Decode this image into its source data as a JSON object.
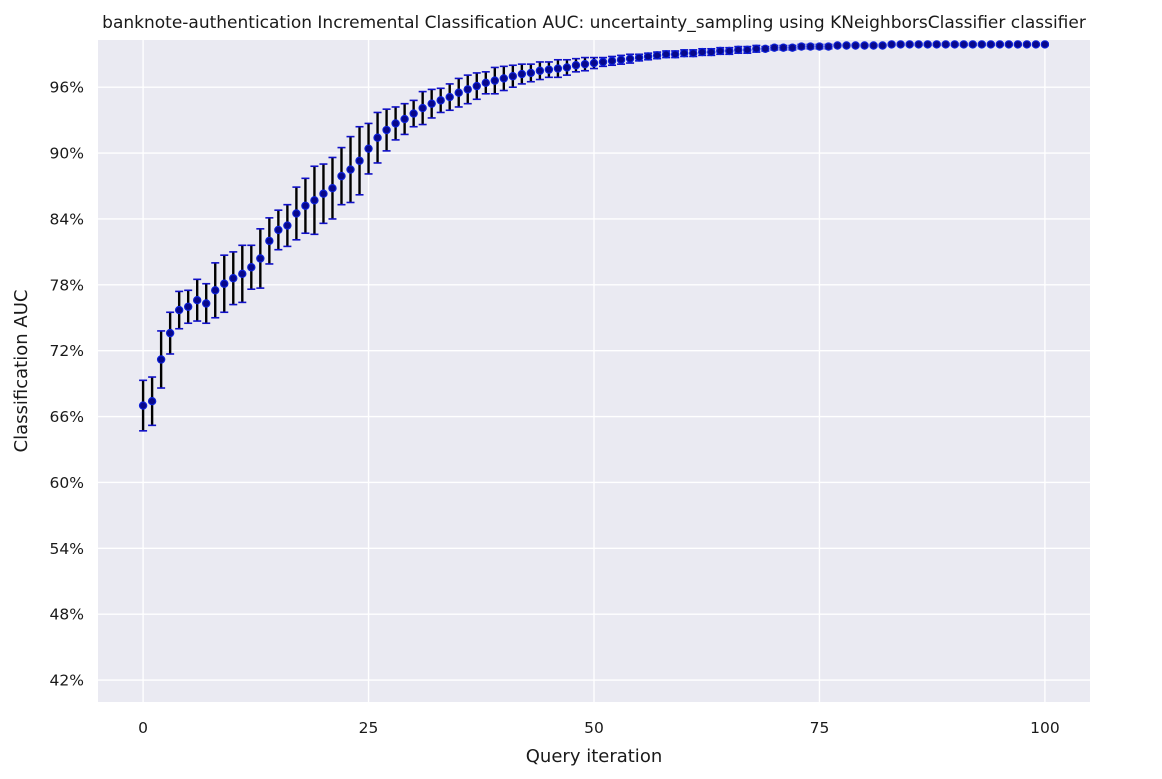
{
  "chart_data": {
    "type": "scatter",
    "title": "banknote-authentication Incremental Classification AUC: uncertainty_sampling using KNeighborsClassifier classifier",
    "xlabel": "Query iteration",
    "ylabel": "Classification AUC",
    "xlim": [
      -5,
      105
    ],
    "ylim": [
      40.0,
      100.3
    ],
    "x_ticks": [
      0,
      25,
      50,
      75,
      100
    ],
    "x_tick_labels": [
      "0",
      "25",
      "50",
      "75",
      "100"
    ],
    "y_ticks": [
      42,
      48,
      54,
      60,
      66,
      72,
      78,
      84,
      90,
      96
    ],
    "y_tick_labels": [
      "42%",
      "48%",
      "54%",
      "60%",
      "66%",
      "72%",
      "78%",
      "84%",
      "90%",
      "96%"
    ],
    "grid": true,
    "background_color": "#eaeaf2",
    "marker_color": "#08088a",
    "errorbar_color": "#000000",
    "errorcap_color": "#1010c8",
    "series": [
      {
        "x": [
          0,
          1,
          2,
          3,
          4,
          5,
          6,
          7,
          8,
          9,
          10,
          11,
          12,
          13,
          14,
          15,
          16,
          17,
          18,
          19,
          20,
          21,
          22,
          23,
          24,
          25,
          26,
          27,
          28,
          29,
          30,
          31,
          32,
          33,
          34,
          35,
          36,
          37,
          38,
          39,
          40,
          41,
          42,
          43,
          44,
          45,
          46,
          47,
          48,
          49,
          50,
          51,
          52,
          53,
          54,
          55,
          56,
          57,
          58,
          59,
          60,
          61,
          62,
          63,
          64,
          65,
          66,
          67,
          68,
          69,
          70,
          71,
          72,
          73,
          74,
          75,
          76,
          77,
          78,
          79,
          80,
          81,
          82,
          83,
          84,
          85,
          86,
          87,
          88,
          89,
          90,
          91,
          92,
          93,
          94,
          95,
          96,
          97,
          98,
          99,
          100
        ],
        "values": [
          67.0,
          67.4,
          71.2,
          73.6,
          75.7,
          76.0,
          76.6,
          76.3,
          77.5,
          78.1,
          78.6,
          79.0,
          79.6,
          80.4,
          82.0,
          83.0,
          83.4,
          84.5,
          85.2,
          85.7,
          86.3,
          86.8,
          87.9,
          88.5,
          89.3,
          90.4,
          91.4,
          92.1,
          92.7,
          93.1,
          93.6,
          94.1,
          94.5,
          94.8,
          95.1,
          95.5,
          95.8,
          96.1,
          96.4,
          96.6,
          96.8,
          97.0,
          97.2,
          97.3,
          97.5,
          97.6,
          97.7,
          97.8,
          98.0,
          98.1,
          98.2,
          98.3,
          98.4,
          98.5,
          98.6,
          98.7,
          98.8,
          98.9,
          99.0,
          99.0,
          99.1,
          99.1,
          99.2,
          99.2,
          99.3,
          99.3,
          99.4,
          99.4,
          99.5,
          99.5,
          99.6,
          99.6,
          99.6,
          99.7,
          99.7,
          99.7,
          99.7,
          99.8,
          99.8,
          99.8,
          99.8,
          99.8,
          99.8,
          99.9,
          99.9,
          99.9,
          99.9,
          99.9,
          99.9,
          99.9,
          99.9,
          99.9,
          99.9,
          99.9,
          99.9,
          99.9,
          99.9,
          99.9,
          99.9,
          99.9,
          99.9
        ],
        "err": [
          2.3,
          2.2,
          2.6,
          1.9,
          1.7,
          1.5,
          1.9,
          1.8,
          2.5,
          2.6,
          2.4,
          2.6,
          2.0,
          2.7,
          2.1,
          1.8,
          1.9,
          2.4,
          2.5,
          3.1,
          2.7,
          2.8,
          2.6,
          3.0,
          3.1,
          2.3,
          2.3,
          1.9,
          1.5,
          1.4,
          1.2,
          1.5,
          1.3,
          1.1,
          1.2,
          1.3,
          1.3,
          1.2,
          1.0,
          1.2,
          1.1,
          1.0,
          0.9,
          0.8,
          0.8,
          0.7,
          0.8,
          0.7,
          0.6,
          0.6,
          0.5,
          0.4,
          0.4,
          0.4,
          0.4,
          0.3,
          0.3,
          0.3,
          0.3,
          0.3,
          0.3,
          0.3,
          0.3,
          0.3,
          0.3,
          0.3,
          0.3,
          0.3,
          0.3,
          0.2,
          0.2,
          0.2,
          0.2,
          0.2,
          0.2,
          0.2,
          0.2,
          0.1,
          0.1,
          0.1,
          0.1,
          0.1,
          0.1,
          0.1,
          0.1,
          0.1,
          0.1,
          0.1,
          0.1,
          0.1,
          0.1,
          0.1,
          0.1,
          0.1,
          0.1,
          0.1,
          0.1,
          0.1,
          0.1,
          0.1,
          0.1
        ]
      }
    ]
  }
}
